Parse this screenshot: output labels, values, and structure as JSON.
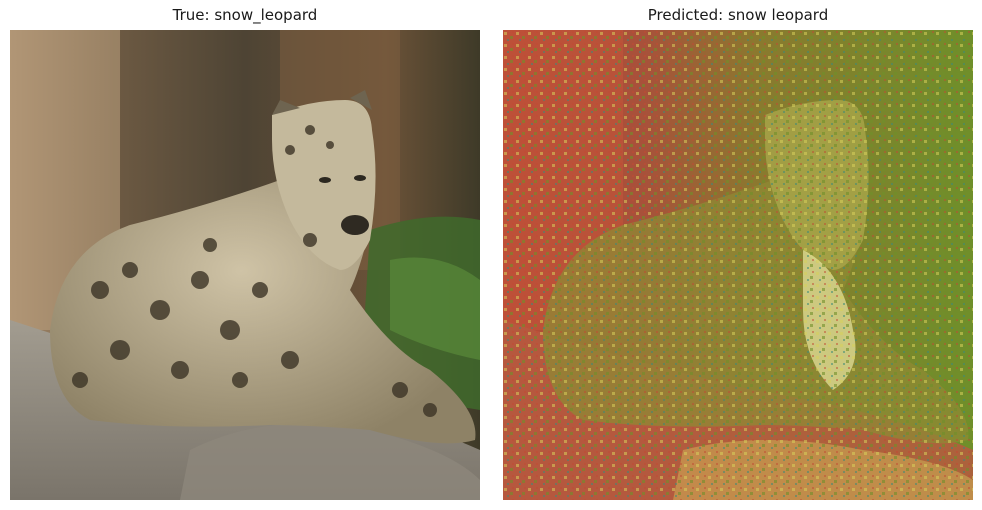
{
  "panels": [
    {
      "title": "True: snow_leopard"
    },
    {
      "title": "Predicted: snow leopard"
    }
  ],
  "colors": {
    "heat_red": "#b54a36",
    "heat_yellow": "#d6d05a",
    "heat_green": "#6f8f2a",
    "heat_teal": "#3c8a78"
  }
}
